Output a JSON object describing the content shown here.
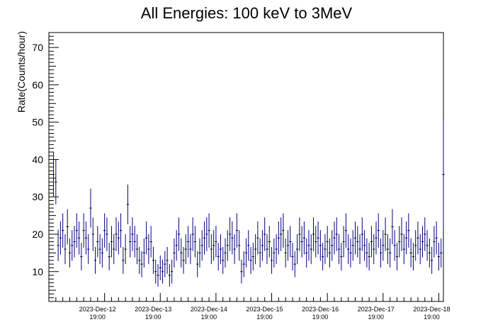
{
  "chart_data": {
    "type": "scatter",
    "title": "All Energies:  100 keV to 3MeV",
    "xlabel": "",
    "ylabel": "Rate(Counts/hour)",
    "ylim": [
      2,
      74
    ],
    "yticks": [
      10,
      20,
      30,
      40,
      50,
      60,
      70
    ],
    "grid": false,
    "x_unit": "hours since 2023-Dec-11 19:00",
    "xlim": [
      0,
      170
    ],
    "xticks": [
      {
        "hours": 24,
        "date": "2023-Dec-12",
        "time": "19:00"
      },
      {
        "hours": 48,
        "date": "2023-Dec-13",
        "time": "19:00"
      },
      {
        "hours": 72,
        "date": "2023-Dec-14",
        "time": "19:00"
      },
      {
        "hours": 96,
        "date": "2023-Dec-15",
        "time": "19:00"
      },
      {
        "hours": 120,
        "date": "2023-Dec-16",
        "time": "19:00"
      },
      {
        "hours": 144,
        "date": "2023-Dec-17",
        "time": "19:00"
      },
      {
        "hours": 168,
        "date": "2023-Dec-18",
        "time": "19:00"
      }
    ],
    "series_color": "#000080",
    "x_start": 2,
    "x_step": 1,
    "values": [
      36,
      34,
      17,
      19,
      21,
      16,
      22,
      15,
      17,
      18,
      21,
      19,
      14,
      21,
      19,
      16,
      27,
      20,
      13,
      18,
      16,
      15,
      21,
      20,
      14,
      18,
      16,
      20,
      19,
      21,
      13,
      16,
      28,
      18,
      20,
      18,
      16,
      13,
      12,
      15,
      19,
      16,
      18,
      13,
      10,
      9,
      11,
      10,
      12,
      13,
      9,
      10,
      15,
      17,
      20,
      15,
      13,
      16,
      18,
      16,
      20,
      18,
      12,
      15,
      17,
      19,
      20,
      21,
      16,
      17,
      18,
      14,
      16,
      13,
      15,
      17,
      20,
      19,
      16,
      21,
      17,
      10,
      12,
      15,
      17,
      13,
      14,
      16,
      19,
      15,
      17,
      20,
      16,
      18,
      13,
      15,
      16,
      19,
      20,
      21,
      15,
      17,
      18,
      14,
      12,
      16,
      20,
      18,
      19,
      15,
      17,
      16,
      20,
      18,
      19,
      17,
      14,
      16,
      18,
      15,
      17,
      19,
      20,
      16,
      14,
      18,
      21,
      16,
      15,
      17,
      19,
      18,
      16,
      20,
      17,
      15,
      14,
      18,
      16,
      19,
      21,
      15,
      17,
      20,
      16,
      15,
      22,
      17,
      14,
      18,
      20,
      16,
      19,
      21,
      15,
      14,
      17,
      19,
      16,
      18,
      20,
      17,
      15,
      13,
      18,
      19,
      14,
      15,
      36
    ],
    "errors": [
      6,
      6,
      4.2,
      4.4,
      4.6,
      4,
      4.7,
      3.9,
      4.1,
      4.2,
      4.6,
      4.4,
      3.7,
      4.6,
      4.4,
      4,
      5.2,
      4.5,
      3.6,
      4.2,
      4,
      3.9,
      4.6,
      4.5,
      3.7,
      4.2,
      4,
      4.5,
      4.4,
      4.6,
      3.6,
      4,
      5.3,
      4.2,
      4.5,
      4.2,
      4,
      3.6,
      3.5,
      3.9,
      4.4,
      4,
      4.2,
      3.6,
      3.2,
      3,
      3.3,
      3.2,
      3.5,
      3.6,
      3,
      3.2,
      3.9,
      4.1,
      4.5,
      3.9,
      3.6,
      4,
      4.2,
      4,
      4.5,
      4.2,
      3.5,
      3.9,
      4.1,
      4.4,
      4.5,
      4.6,
      4,
      4.1,
      4.2,
      3.7,
      4,
      3.6,
      3.9,
      4.1,
      4.5,
      4.4,
      4,
      4.6,
      4.1,
      3.2,
      3.5,
      3.9,
      4.1,
      3.6,
      3.7,
      4,
      4.4,
      3.9,
      4.1,
      4.5,
      4,
      4.2,
      3.6,
      3.9,
      4,
      4.4,
      4.5,
      4.6,
      3.9,
      4.1,
      4.2,
      3.7,
      3.5,
      4,
      4.5,
      4.2,
      4.4,
      3.9,
      4.1,
      4,
      4.5,
      4.2,
      4.4,
      4.1,
      3.7,
      4,
      4.2,
      3.9,
      4.1,
      4.4,
      4.5,
      4,
      3.7,
      4.2,
      4.6,
      4,
      3.9,
      4.1,
      4.4,
      4.2,
      4,
      4.5,
      4.1,
      3.9,
      3.7,
      4.2,
      4,
      4.4,
      4.6,
      3.9,
      4.1,
      4.5,
      4,
      3.9,
      4.7,
      4.1,
      3.7,
      4.2,
      4.5,
      4,
      4.4,
      4.6,
      3.9,
      3.7,
      4.1,
      4.4,
      4,
      4.2,
      4.5,
      4.1,
      3.9,
      3.6,
      4.2,
      4.4,
      3.7,
      3.9,
      15
    ]
  }
}
